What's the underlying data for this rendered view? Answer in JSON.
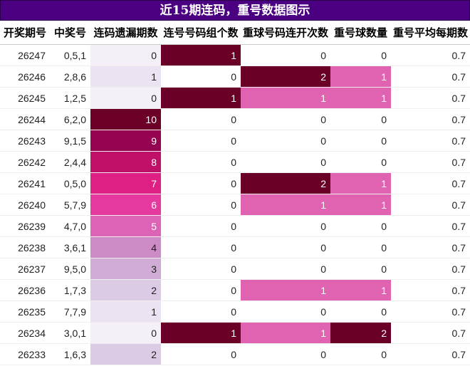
{
  "title": "近15期连码，重号数据图示",
  "headers": [
    "开奖期号",
    "中奖号",
    "连码遗漏期数",
    "连号号码组个数",
    "重球号码连开次数",
    "重号球数量",
    "重号平均每期数"
  ],
  "palette": {
    "header_bg": "#4b0082",
    "miss": {
      "0": "#f5f0f8",
      "1": "#ebe3f1",
      "2": "#dccbe4",
      "3": "#d0acd7",
      "4": "#cd8bc6",
      "5": "#dd63b6",
      "6": "#e6399f",
      "7": "#de1f84",
      "8": "#c11068",
      "9": "#960350",
      "10": "#6c0028"
    },
    "zero": "#f5f0f8",
    "one": "#df63b0",
    "max": "#6a0027"
  },
  "rows": [
    {
      "issue": "26247",
      "numbers": "0,5,1",
      "miss": "0",
      "consec": "1",
      "repeat_run": "0",
      "repeat_count": "0",
      "avg": "0.7"
    },
    {
      "issue": "26246",
      "numbers": "2,8,6",
      "miss": "1",
      "consec": "0",
      "repeat_run": "2",
      "repeat_count": "1",
      "avg": "0.7"
    },
    {
      "issue": "26245",
      "numbers": "1,2,5",
      "miss": "0",
      "consec": "1",
      "repeat_run": "1",
      "repeat_count": "1",
      "avg": "0.7"
    },
    {
      "issue": "26244",
      "numbers": "6,2,0",
      "miss": "10",
      "consec": "0",
      "repeat_run": "0",
      "repeat_count": "0",
      "avg": "0.7"
    },
    {
      "issue": "26243",
      "numbers": "9,1,5",
      "miss": "9",
      "consec": "0",
      "repeat_run": "0",
      "repeat_count": "0",
      "avg": "0.7"
    },
    {
      "issue": "26242",
      "numbers": "2,4,4",
      "miss": "8",
      "consec": "0",
      "repeat_run": "0",
      "repeat_count": "0",
      "avg": "0.7"
    },
    {
      "issue": "26241",
      "numbers": "0,5,0",
      "miss": "7",
      "consec": "0",
      "repeat_run": "2",
      "repeat_count": "1",
      "avg": "0.7"
    },
    {
      "issue": "26240",
      "numbers": "5,7,9",
      "miss": "6",
      "consec": "0",
      "repeat_run": "1",
      "repeat_count": "1",
      "avg": "0.7"
    },
    {
      "issue": "26239",
      "numbers": "4,7,0",
      "miss": "5",
      "consec": "0",
      "repeat_run": "0",
      "repeat_count": "0",
      "avg": "0.7"
    },
    {
      "issue": "26238",
      "numbers": "3,6,1",
      "miss": "4",
      "consec": "0",
      "repeat_run": "0",
      "repeat_count": "0",
      "avg": "0.7"
    },
    {
      "issue": "26237",
      "numbers": "9,5,0",
      "miss": "3",
      "consec": "0",
      "repeat_run": "0",
      "repeat_count": "0",
      "avg": "0.7"
    },
    {
      "issue": "26236",
      "numbers": "1,7,3",
      "miss": "2",
      "consec": "0",
      "repeat_run": "1",
      "repeat_count": "1",
      "avg": "0.7"
    },
    {
      "issue": "26235",
      "numbers": "7,7,9",
      "miss": "1",
      "consec": "0",
      "repeat_run": "0",
      "repeat_count": "0",
      "avg": "0.7"
    },
    {
      "issue": "26234",
      "numbers": "3,0,1",
      "miss": "0",
      "consec": "1",
      "repeat_run": "1",
      "repeat_count": "2",
      "avg": "0.7"
    },
    {
      "issue": "26233",
      "numbers": "1,6,3",
      "miss": "2",
      "consec": "0",
      "repeat_run": "0",
      "repeat_count": "0",
      "avg": "0.7"
    }
  ]
}
